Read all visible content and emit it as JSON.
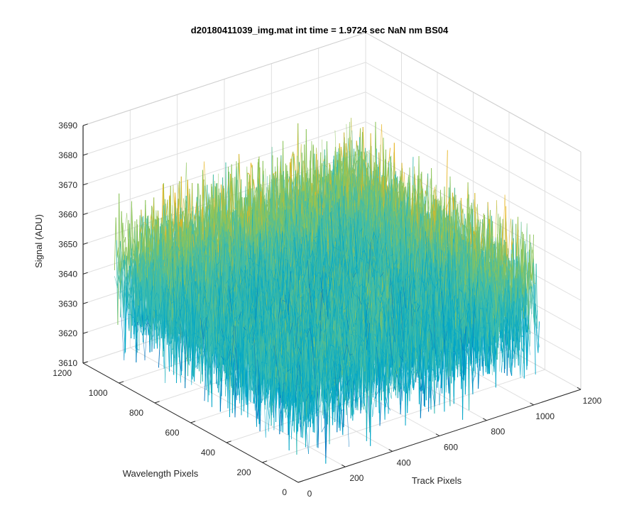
{
  "chart_data": {
    "type": "surface",
    "title": "d20180411039_img.mat int time = 1.9724 sec  NaN nm BS04",
    "xlabel": "Track Pixels",
    "ylabel": "Wavelength Pixels",
    "zlabel": "Signal (ADU)",
    "xlim": [
      0,
      1200
    ],
    "ylim": [
      0,
      1200
    ],
    "zlim": [
      3610,
      3690
    ],
    "xticks": [
      "0",
      "200",
      "400",
      "600",
      "800",
      "1000",
      "1200"
    ],
    "yticks": [
      "0",
      "200",
      "400",
      "600",
      "800",
      "1000",
      "1200"
    ],
    "zticks": [
      "3610",
      "3620",
      "3630",
      "3640",
      "3650",
      "3660",
      "3670",
      "3680",
      "3690"
    ],
    "data_extent": {
      "x": [
        0,
        1024
      ],
      "y": [
        0,
        1024
      ]
    },
    "signal_mean": 3645,
    "signal_noise_range": [
      3615,
      3685
    ],
    "grid": true,
    "colormap": [
      "#0072bd",
      "#00a6c8",
      "#3cbcae",
      "#8cc45a",
      "#e6b422",
      "#f5c216"
    ]
  }
}
